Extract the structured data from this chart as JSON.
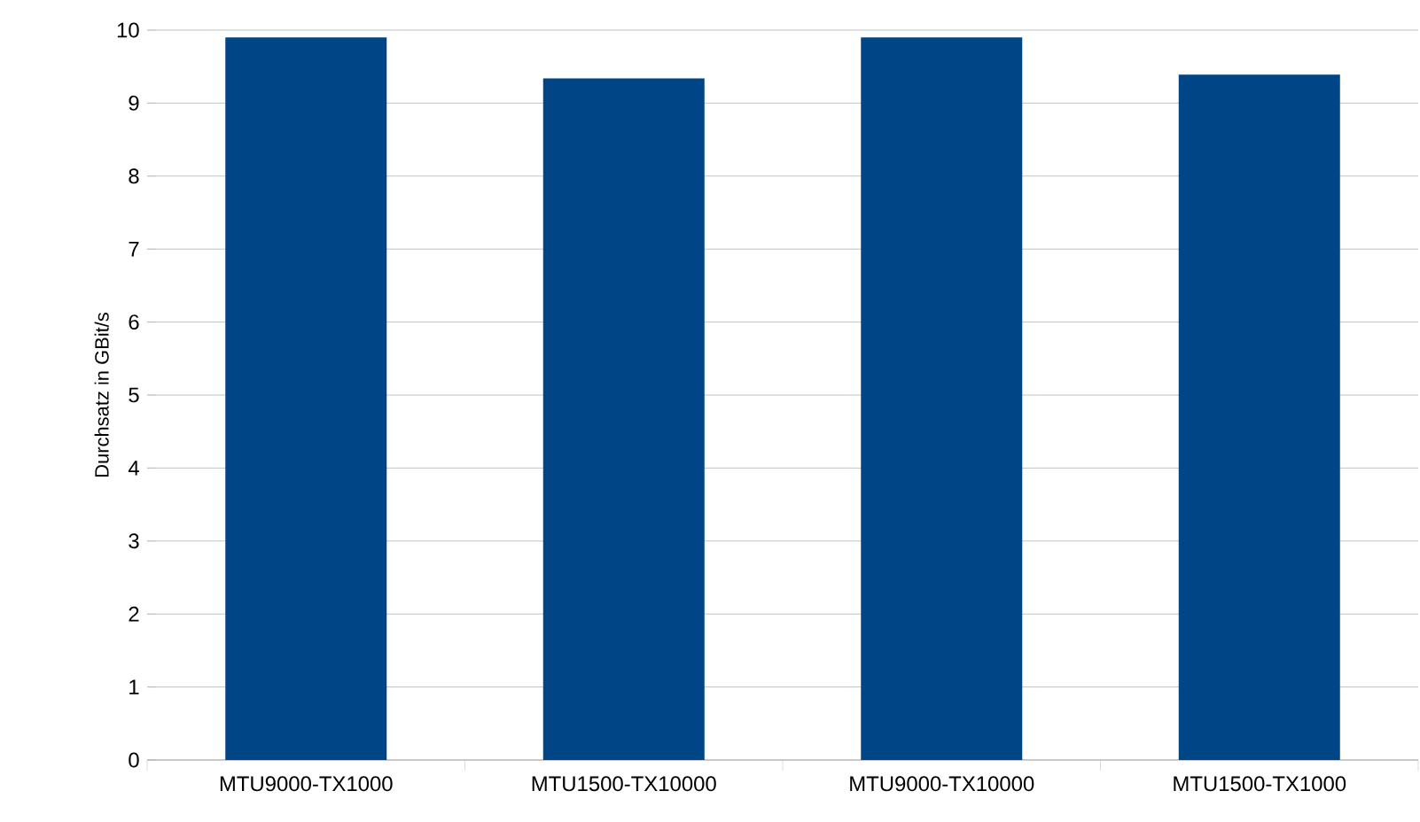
{
  "chart_data": {
    "type": "bar",
    "ylabel": "Durchsatz in GBit/s",
    "categories": [
      "MTU9000-TX1000",
      "MTU1500-TX10000",
      "MTU9000-TX10000",
      "MTU1500-TX1000"
    ],
    "values": [
      9.9,
      9.34,
      9.9,
      9.39
    ],
    "color": "#004586",
    "ylim": [
      0,
      10
    ],
    "yticks": [
      0,
      1,
      2,
      3,
      4,
      5,
      6,
      7,
      8,
      9,
      10
    ],
    "grid": "y"
  }
}
